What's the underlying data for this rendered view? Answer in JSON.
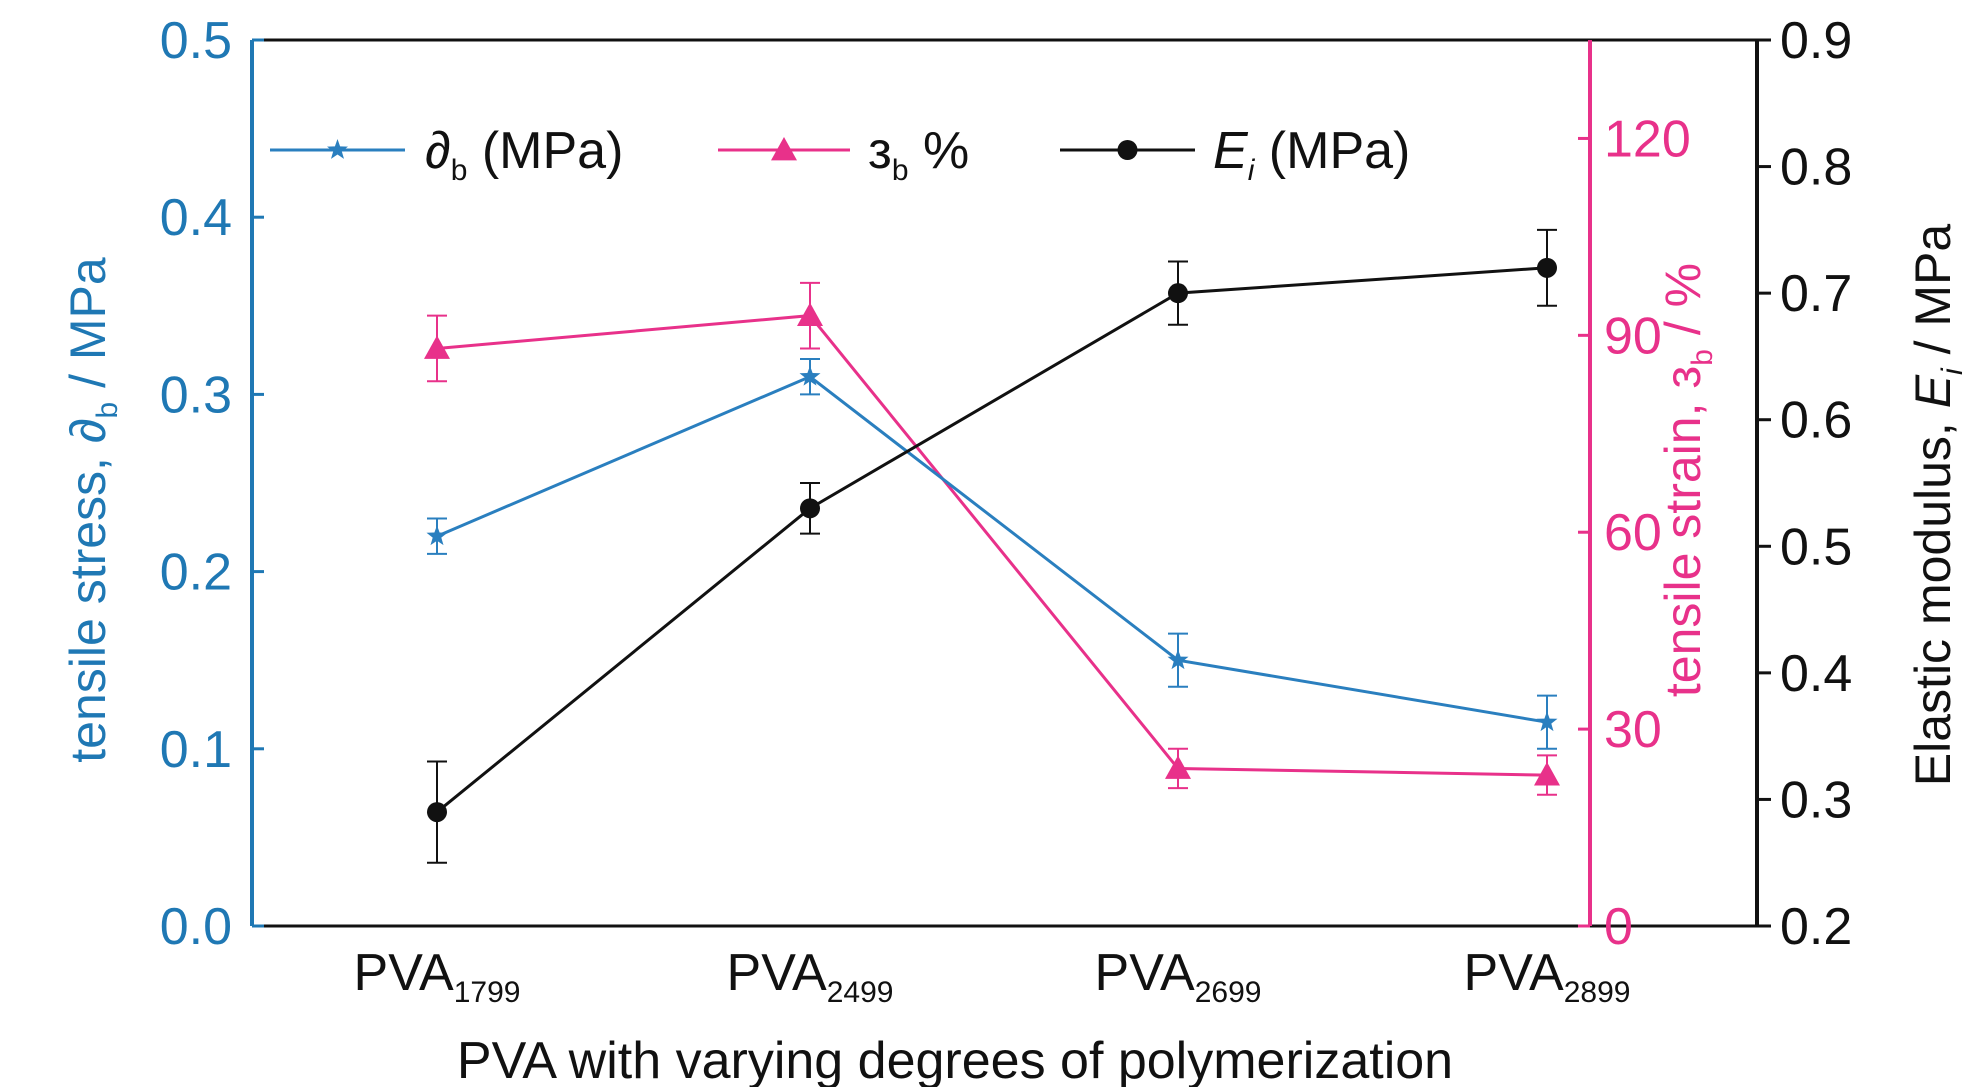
{
  "chart_data": {
    "type": "line",
    "categories": [
      {
        "base": "PVA",
        "sub": "1799"
      },
      {
        "base": "PVA",
        "sub": "2499"
      },
      {
        "base": "PVA",
        "sub": "2699"
      },
      {
        "base": "PVA",
        "sub": "2899"
      }
    ],
    "xlabel": "PVA with varying degrees of polymerization",
    "axes": {
      "left": {
        "label_main": "tensile stress, ",
        "label_symbol": "∂",
        "label_sub": "b",
        "label_unit": " / MPa",
        "range": [
          0.0,
          0.5
        ],
        "ticks": [
          "0.0",
          "0.1",
          "0.2",
          "0.3",
          "0.4",
          "0.5"
        ],
        "color": "#1f78b4"
      },
      "right1": {
        "label_main": "tensile strain, ",
        "label_symbol": "з",
        "label_sub": "b",
        "label_unit": " / %",
        "range": [
          0,
          135
        ],
        "ticks": [
          "0",
          "30",
          "60",
          "90",
          "120"
        ],
        "color": "#e8318a"
      },
      "right2": {
        "label_main": "Elastic modulus, ",
        "label_symbol": "E",
        "label_sub": "i",
        "label_unit": " / MPa",
        "range": [
          0.2,
          0.9
        ],
        "ticks": [
          "0.2",
          "0.3",
          "0.4",
          "0.5",
          "0.6",
          "0.7",
          "0.8",
          "0.9"
        ],
        "color": "#111111"
      }
    },
    "series": [
      {
        "name_symbol": "∂",
        "name_sub": "b",
        "name_suffix": " (MPa)",
        "axis": "left",
        "marker": "star",
        "color": "#2a7fbf",
        "values": [
          0.22,
          0.31,
          0.15,
          0.115
        ],
        "errors": [
          0.01,
          0.01,
          0.015,
          0.015
        ]
      },
      {
        "name_symbol": "з",
        "name_sub": "b",
        "name_suffix": " %",
        "axis": "right1",
        "marker": "triangle",
        "color": "#e8318a",
        "values": [
          88,
          93,
          24,
          23
        ],
        "errors": [
          5,
          5,
          3,
          3
        ]
      },
      {
        "name_symbol": "E",
        "name_sub": "i",
        "name_suffix": " (MPa)",
        "axis": "right2",
        "marker": "circle",
        "color": "#111111",
        "values": [
          0.29,
          0.53,
          0.7,
          0.72
        ],
        "errors": [
          0.04,
          0.02,
          0.025,
          0.03
        ]
      }
    ],
    "legend": "top-left",
    "grid": false
  }
}
